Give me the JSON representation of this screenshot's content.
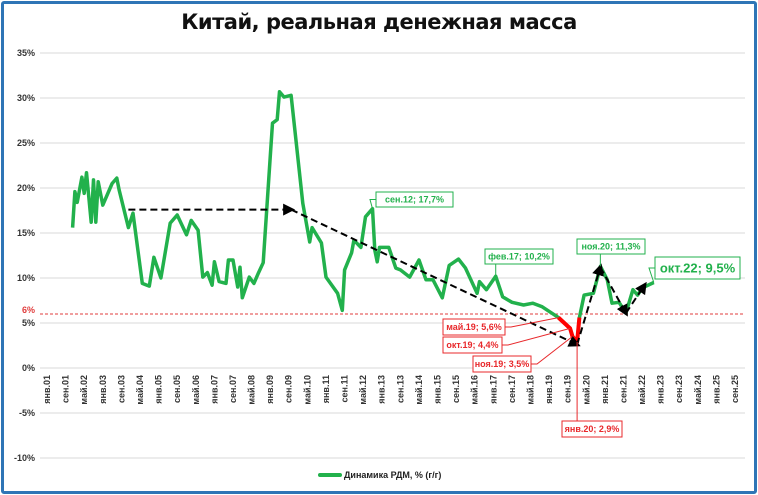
{
  "chart_data": {
    "type": "line",
    "title": "Китай, реальная денежная масса",
    "ylim": [
      -10,
      35
    ],
    "yticks": [
      "35%",
      "30%",
      "25%",
      "20%",
      "15%",
      "10%",
      "5%",
      "0%",
      "-5%",
      "-10%"
    ],
    "ytick_values": [
      35,
      30,
      25,
      20,
      15,
      10,
      5,
      0,
      -5,
      -10
    ],
    "xticks": [
      "янв.01",
      "сен.01",
      "май.02",
      "янв.03",
      "сен.03",
      "май.04",
      "янв.05",
      "сен.05",
      "май.06",
      "янв.07",
      "сен.07",
      "май.08",
      "янв.09",
      "сен.09",
      "май.10",
      "янв.11",
      "сен.11",
      "май.12",
      "янв.13",
      "сен.13",
      "май.14",
      "янв.15",
      "сен.15",
      "май.16",
      "янв.17",
      "сен.17",
      "май.18",
      "янв.19",
      "сен.19",
      "май.20",
      "янв.21",
      "сен.21",
      "май.22",
      "янв.23",
      "сен.23",
      "май.24",
      "янв.25",
      "сен.25"
    ],
    "xlim": [
      "2001-01",
      "2025-09"
    ],
    "grid": true,
    "legend_position": "bottom",
    "threshold": {
      "value": 6,
      "label": "6%",
      "color": "#e03c3c"
    },
    "colors": {
      "series": "#22b14c",
      "highlight": "#ff0000",
      "trend": "#000000",
      "frame": "#2e75b6"
    },
    "series": [
      {
        "name": "Динамика РДМ, % (г/г)",
        "highlight_range": [
          "2019-05",
          "2020-02"
        ],
        "points": [
          [
            "2001-12",
            15.6
          ],
          [
            "2002-01",
            19.6
          ],
          [
            "2002-02",
            18.4
          ],
          [
            "2002-04",
            21.2
          ],
          [
            "2002-05",
            19.4
          ],
          [
            "2002-06",
            21.7
          ],
          [
            "2002-08",
            16.2
          ],
          [
            "2002-09",
            20.9
          ],
          [
            "2002-10",
            16.2
          ],
          [
            "2002-11",
            20.7
          ],
          [
            "2003-01",
            18.1
          ],
          [
            "2003-05",
            20.5
          ],
          [
            "2003-07",
            21.1
          ],
          [
            "2003-08",
            19.8
          ],
          [
            "2003-12",
            15.6
          ],
          [
            "2004-02",
            17.2
          ],
          [
            "2004-06",
            9.4
          ],
          [
            "2004-08",
            9.2
          ],
          [
            "2004-09",
            9.1
          ],
          [
            "2004-11",
            12.3
          ],
          [
            "2005-02",
            10.0
          ],
          [
            "2005-06",
            16.1
          ],
          [
            "2005-09",
            17.0
          ],
          [
            "2006-01",
            14.8
          ],
          [
            "2006-03",
            16.4
          ],
          [
            "2006-06",
            15.3
          ],
          [
            "2006-08",
            10.1
          ],
          [
            "2006-10",
            10.6
          ],
          [
            "2006-12",
            9.2
          ],
          [
            "2007-01",
            11.8
          ],
          [
            "2007-03",
            9.6
          ],
          [
            "2007-06",
            9.4
          ],
          [
            "2007-07",
            12.0
          ],
          [
            "2007-09",
            12.0
          ],
          [
            "2007-11",
            9.0
          ],
          [
            "2007-12",
            11.2
          ],
          [
            "2008-01",
            7.8
          ],
          [
            "2008-04",
            10.1
          ],
          [
            "2008-06",
            9.4
          ],
          [
            "2008-08",
            10.6
          ],
          [
            "2008-10",
            11.7
          ],
          [
            "2009-01",
            23.4
          ],
          [
            "2009-02",
            27.2
          ],
          [
            "2009-04",
            27.6
          ],
          [
            "2009-05",
            30.7
          ],
          [
            "2009-07",
            30.1
          ],
          [
            "2009-10",
            30.3
          ],
          [
            "2010-03",
            18.3
          ],
          [
            "2010-06",
            14.0
          ],
          [
            "2010-07",
            15.6
          ],
          [
            "2010-11",
            13.9
          ],
          [
            "2011-01",
            10.1
          ],
          [
            "2011-06",
            8.3
          ],
          [
            "2011-08",
            6.4
          ],
          [
            "2011-09",
            10.9
          ],
          [
            "2011-12",
            12.8
          ],
          [
            "2012-01",
            14.2
          ],
          [
            "2012-04",
            13.4
          ],
          [
            "2012-06",
            16.8
          ],
          [
            "2012-09",
            17.7
          ],
          [
            "2012-10",
            13.1
          ],
          [
            "2012-11",
            11.8
          ],
          [
            "2012-12",
            13.4
          ],
          [
            "2013-04",
            13.4
          ],
          [
            "2013-07",
            11.1
          ],
          [
            "2013-09",
            10.9
          ],
          [
            "2014-01",
            10.1
          ],
          [
            "2014-05",
            12.0
          ],
          [
            "2014-08",
            9.8
          ],
          [
            "2014-11",
            9.8
          ],
          [
            "2015-03",
            7.8
          ],
          [
            "2015-06",
            11.4
          ],
          [
            "2015-10",
            12.1
          ],
          [
            "2016-01",
            11.1
          ],
          [
            "2016-06",
            8.3
          ],
          [
            "2016-07",
            9.6
          ],
          [
            "2016-10",
            8.7
          ],
          [
            "2017-02",
            10.2
          ],
          [
            "2017-05",
            7.9
          ],
          [
            "2017-09",
            7.3
          ],
          [
            "2018-02",
            7.0
          ],
          [
            "2018-06",
            7.2
          ],
          [
            "2018-10",
            6.8
          ],
          [
            "2019-05",
            5.6
          ],
          [
            "2019-10",
            4.4
          ],
          [
            "2019-11",
            3.5
          ],
          [
            "2020-01",
            2.9
          ],
          [
            "2020-02",
            5.6
          ],
          [
            "2020-04",
            8.1
          ],
          [
            "2020-08",
            8.3
          ],
          [
            "2020-11",
            11.3
          ],
          [
            "2021-02",
            9.8
          ],
          [
            "2021-04",
            7.2
          ],
          [
            "2021-07",
            7.3
          ],
          [
            "2021-10",
            6.1
          ],
          [
            "2022-01",
            8.7
          ],
          [
            "2022-03",
            8.1
          ],
          [
            "2022-05",
            8.9
          ],
          [
            "2022-10",
            9.5
          ]
        ]
      }
    ],
    "trend_lines": [
      {
        "from": [
          "2003-12",
          17.6
        ],
        "to": [
          "2009-10",
          17.6
        ]
      },
      {
        "from": [
          "2009-10",
          17.6
        ],
        "to": [
          "2020-01",
          2.6
        ]
      },
      {
        "from": [
          "2020-01",
          2.6
        ],
        "to": [
          "2020-11",
          11.2
        ]
      },
      {
        "from": [
          "2020-11",
          11.2
        ],
        "to": [
          "2021-10",
          6.1
        ]
      },
      {
        "from": [
          "2021-10",
          6.1
        ],
        "to": [
          "2022-06",
          9.2
        ]
      }
    ],
    "annotations": [
      {
        "text": "сен.12; 17,7%",
        "date": "2012-09",
        "value": 17.7,
        "color": "#22b14c"
      },
      {
        "text": "фев.17; 10,2%",
        "date": "2017-02",
        "value": 10.2,
        "color": "#22b14c"
      },
      {
        "text": "ноя.20; 11,3%",
        "date": "2020-11",
        "value": 11.3,
        "color": "#22b14c"
      },
      {
        "text": "окт.22; 9,5%",
        "date": "2022-10",
        "value": 9.5,
        "color": "#22b14c"
      },
      {
        "text": "май.19; 5,6%",
        "date": "2019-05",
        "value": 5.6,
        "color": "#e8282b"
      },
      {
        "text": "окт.19; 4,4%",
        "date": "2019-10",
        "value": 4.4,
        "color": "#e8282b"
      },
      {
        "text": "ноя.19; 3,5%",
        "date": "2019-11",
        "value": 3.5,
        "color": "#e8282b"
      },
      {
        "text": "янв.20; 2,9%",
        "date": "2020-01",
        "value": 2.9,
        "color": "#e8282b"
      }
    ]
  }
}
